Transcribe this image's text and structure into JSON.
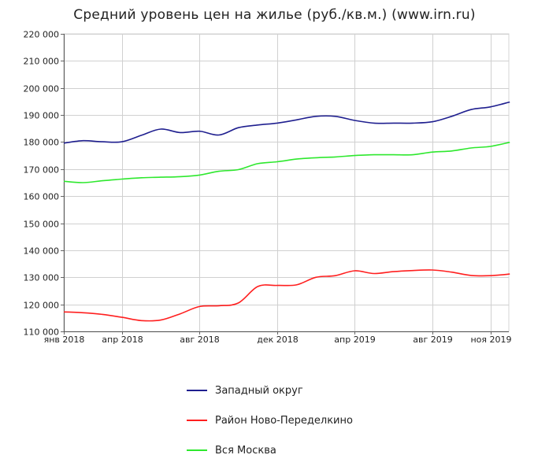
{
  "chart_data": {
    "type": "line",
    "title": "Средний уровень цен на жилье (руб./кв.м.) (www.irn.ru)",
    "xlabel": "",
    "ylabel": "",
    "ylim": [
      110000,
      220000
    ],
    "yticks": [
      110000,
      120000,
      130000,
      140000,
      150000,
      160000,
      170000,
      180000,
      190000,
      200000,
      210000,
      220000
    ],
    "ytick_labels": [
      "110 000",
      "120 000",
      "130 000",
      "140 000",
      "150 000",
      "160 000",
      "170 000",
      "180 000",
      "190 000",
      "200 000",
      "210 000",
      "220 000"
    ],
    "xlim": [
      "2018-01",
      "2019-12"
    ],
    "xticks": [
      "2018-01",
      "2018-04",
      "2018-08",
      "2018-12",
      "2019-04",
      "2019-08",
      "2019-11"
    ],
    "xtick_labels": [
      "янв 2018",
      "апр 2018",
      "авг 2018",
      "дек 2018",
      "апр 2019",
      "авг 2019",
      "ноя 2019"
    ],
    "x": [
      "2018-01",
      "2018-02",
      "2018-03",
      "2018-04",
      "2018-05",
      "2018-06",
      "2018-07",
      "2018-08",
      "2018-09",
      "2018-10",
      "2018-11",
      "2018-12",
      "2019-01",
      "2019-02",
      "2019-03",
      "2019-04",
      "2019-05",
      "2019-06",
      "2019-07",
      "2019-08",
      "2019-09",
      "2019-10",
      "2019-11",
      "2019-12"
    ],
    "grid": true,
    "legend_position": "bottom",
    "series": [
      {
        "name": "Западный округ",
        "color": "#1f1f8f",
        "values": [
          179600,
          180500,
          180100,
          180100,
          182500,
          184800,
          183500,
          184000,
          182600,
          185300,
          186300,
          187000,
          188200,
          189500,
          189500,
          188000,
          187000,
          187000,
          187000,
          187500,
          189500,
          192000,
          193000,
          194800
        ]
      },
      {
        "name": "Район Ново-Переделкино",
        "color": "#ff1f1f",
        "values": [
          117200,
          116900,
          116300,
          115200,
          114000,
          114200,
          116500,
          119200,
          119500,
          120500,
          126600,
          127000,
          127200,
          130000,
          130600,
          132400,
          131400,
          132100,
          132500,
          132700,
          131900,
          130700,
          130600,
          131200
        ]
      },
      {
        "name": "Вся Москва",
        "color": "#2ee82e",
        "values": [
          165500,
          165000,
          165700,
          166300,
          166800,
          167000,
          167200,
          167800,
          169200,
          169800,
          172000,
          172700,
          173700,
          174200,
          174500,
          175000,
          175300,
          175300,
          175300,
          176300,
          176700,
          177800,
          178400,
          179900
        ]
      }
    ]
  }
}
